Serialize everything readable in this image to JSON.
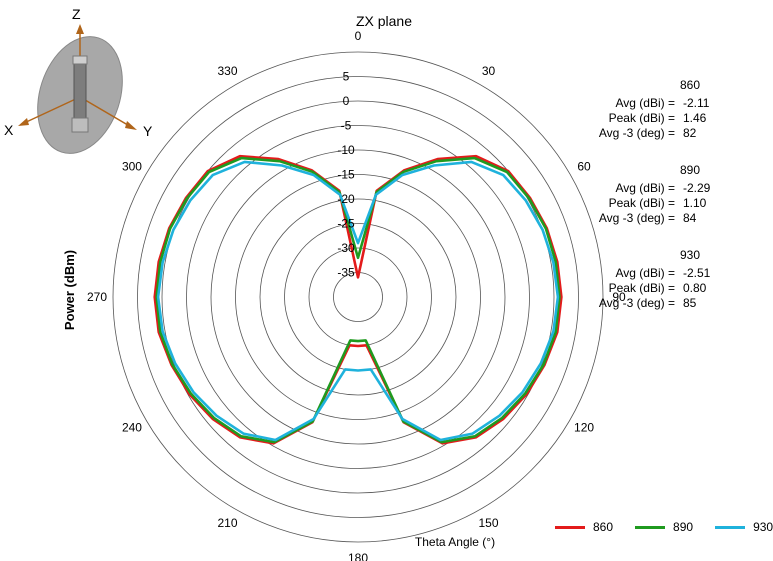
{
  "chart_data": {
    "type": "polar-line",
    "title": "ZX plane",
    "radial_axis_label": "Power (dBm)",
    "angular_axis_label": "Theta  Angle (°)",
    "radial_range": [
      -40,
      10
    ],
    "radial_ticks": [
      "5",
      "0",
      "-5",
      "-10",
      "-15",
      "-20",
      "-25",
      "-30",
      "-35"
    ],
    "angular_ticks": [
      "0",
      "30",
      "60",
      "90",
      "120",
      "150",
      "180",
      "210",
      "240",
      "270",
      "300",
      "330"
    ],
    "grid": true,
    "legend_position": "bottom-right",
    "theta_deg": [
      0,
      10,
      20,
      30,
      40,
      50,
      60,
      70,
      80,
      90,
      100,
      110,
      120,
      130,
      140,
      150,
      160,
      170,
      180,
      190,
      200,
      210,
      220,
      230,
      240,
      250,
      260,
      270,
      280,
      290,
      300,
      310,
      320,
      330,
      340,
      350
    ],
    "series": [
      {
        "name": "860",
        "color": "#e31b1b",
        "values": [
          -36,
          -18,
          -12.5,
          -7.5,
          -2.5,
          0,
          0.5,
          1.0,
          1.3,
          1.5,
          1.3,
          0.5,
          -0.3,
          -1.3,
          -2.6,
          -5.5,
          -12.8,
          -30,
          -30,
          -30,
          -12.8,
          -5.5,
          -2.6,
          -1.3,
          -0.3,
          0.5,
          1.3,
          1.5,
          1.3,
          1.0,
          0.5,
          0,
          -2.5,
          -7.5,
          -12.5,
          -18
        ]
      },
      {
        "name": "890",
        "color": "#1f9a1f",
        "values": [
          -32,
          -18.3,
          -12.8,
          -8.0,
          -3.0,
          -0.3,
          0.3,
          0.8,
          1.0,
          1.1,
          1.0,
          0.3,
          -0.6,
          -1.6,
          -2.9,
          -5.8,
          -13,
          -31,
          -31,
          -31,
          -13,
          -5.8,
          -2.9,
          -1.6,
          -0.6,
          0.3,
          1.0,
          1.1,
          1.0,
          0.8,
          0.3,
          -0.3,
          -3.0,
          -8.0,
          -12.8,
          -18.3
        ]
      },
      {
        "name": "930",
        "color": "#1fb2dc",
        "values": [
          -29,
          -18.8,
          -13.5,
          -9.0,
          -4.0,
          -1.3,
          -0.5,
          0.1,
          0.5,
          0.8,
          0.5,
          -0.3,
          -1.2,
          -2.3,
          -3.6,
          -6.3,
          -13.5,
          -25,
          -25,
          -25,
          -13.5,
          -6.3,
          -3.6,
          -2.3,
          -1.2,
          -0.3,
          0.5,
          0.8,
          0.5,
          0.1,
          -0.5,
          -1.3,
          -4.0,
          -9.0,
          -13.5,
          -18.8
        ]
      }
    ]
  },
  "inset": {
    "axis_z": "Z",
    "axis_x": "X",
    "axis_y": "Y"
  },
  "stats": [
    {
      "band": "860",
      "rows": [
        {
          "label": "Avg (dBi) =",
          "value": "-2.11"
        },
        {
          "label": "Peak (dBi) =",
          "value": "1.46"
        },
        {
          "label": "Avg -3 (deg) =",
          "value": "82"
        }
      ]
    },
    {
      "band": "890",
      "rows": [
        {
          "label": "Avg (dBi) =",
          "value": "-2.29"
        },
        {
          "label": "Peak (dBi) =",
          "value": "1.10"
        },
        {
          "label": "Avg -3 (deg) =",
          "value": "84"
        }
      ]
    },
    {
      "band": "930",
      "rows": [
        {
          "label": "Avg (dBi) =",
          "value": "-2.51"
        },
        {
          "label": "Peak (dBi) =",
          "value": "0.80"
        },
        {
          "label": "Avg -3 (deg) =",
          "value": "85"
        }
      ]
    }
  ]
}
